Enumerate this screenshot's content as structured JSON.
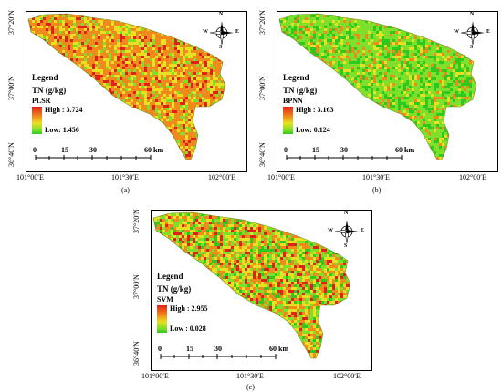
{
  "panels": [
    {
      "id": "a",
      "caption": "(a)",
      "lat_labels": [
        "37°20′N",
        "37°00′N",
        "36°40′N"
      ],
      "lon_labels": [
        "101°00′E",
        "101°30′E",
        "102°00′E"
      ],
      "legend": {
        "title": "Legend",
        "unit": "TN (g/kg)",
        "model": "PLSR",
        "high": "High : 3.724",
        "low": "Low:  1.456"
      },
      "scale": {
        "labels": [
          "0",
          "15",
          "30",
          "60 km"
        ]
      },
      "compass": {
        "n": "N",
        "e": "E",
        "s": "S",
        "w": "W"
      },
      "tone": "orange"
    },
    {
      "id": "b",
      "caption": "(b)",
      "lat_labels": [
        "37°20′N",
        "37°00′N",
        "36°40′N"
      ],
      "lon_labels": [
        "101°00′E",
        "101°30′E",
        "102°00′E"
      ],
      "legend": {
        "title": "Legend",
        "unit": "TN (g/kg)",
        "model": "BPNN",
        "high": "High : 3.163",
        "low": "Low: 0.124"
      },
      "scale": {
        "labels": [
          "0",
          "15",
          "30",
          "60 km"
        ]
      },
      "compass": {
        "n": "N",
        "e": "E",
        "s": "S",
        "w": "W"
      },
      "tone": "green"
    },
    {
      "id": "c",
      "caption": "(c)",
      "lat_labels": [
        "37°20′N",
        "37°00′N",
        "36°40′N"
      ],
      "lon_labels": [
        "101°00′E",
        "101°30′E",
        "102°00′E"
      ],
      "legend": {
        "title": "Legend",
        "unit": "TN (g/kg)",
        "model": "SVM",
        "high": "High : 2.955",
        "low": "Low : 0.028"
      },
      "scale": {
        "labels": [
          "0",
          "15",
          "30",
          "60 km"
        ]
      },
      "compass": {
        "n": "N",
        "e": "E",
        "s": "S",
        "w": "W"
      },
      "tone": "mixed"
    }
  ],
  "colors": {
    "high": "#e0201a",
    "mid_high": "#f08a1c",
    "mid": "#e8e020",
    "mid_low": "#7ee02a",
    "low": "#2ec81e"
  }
}
